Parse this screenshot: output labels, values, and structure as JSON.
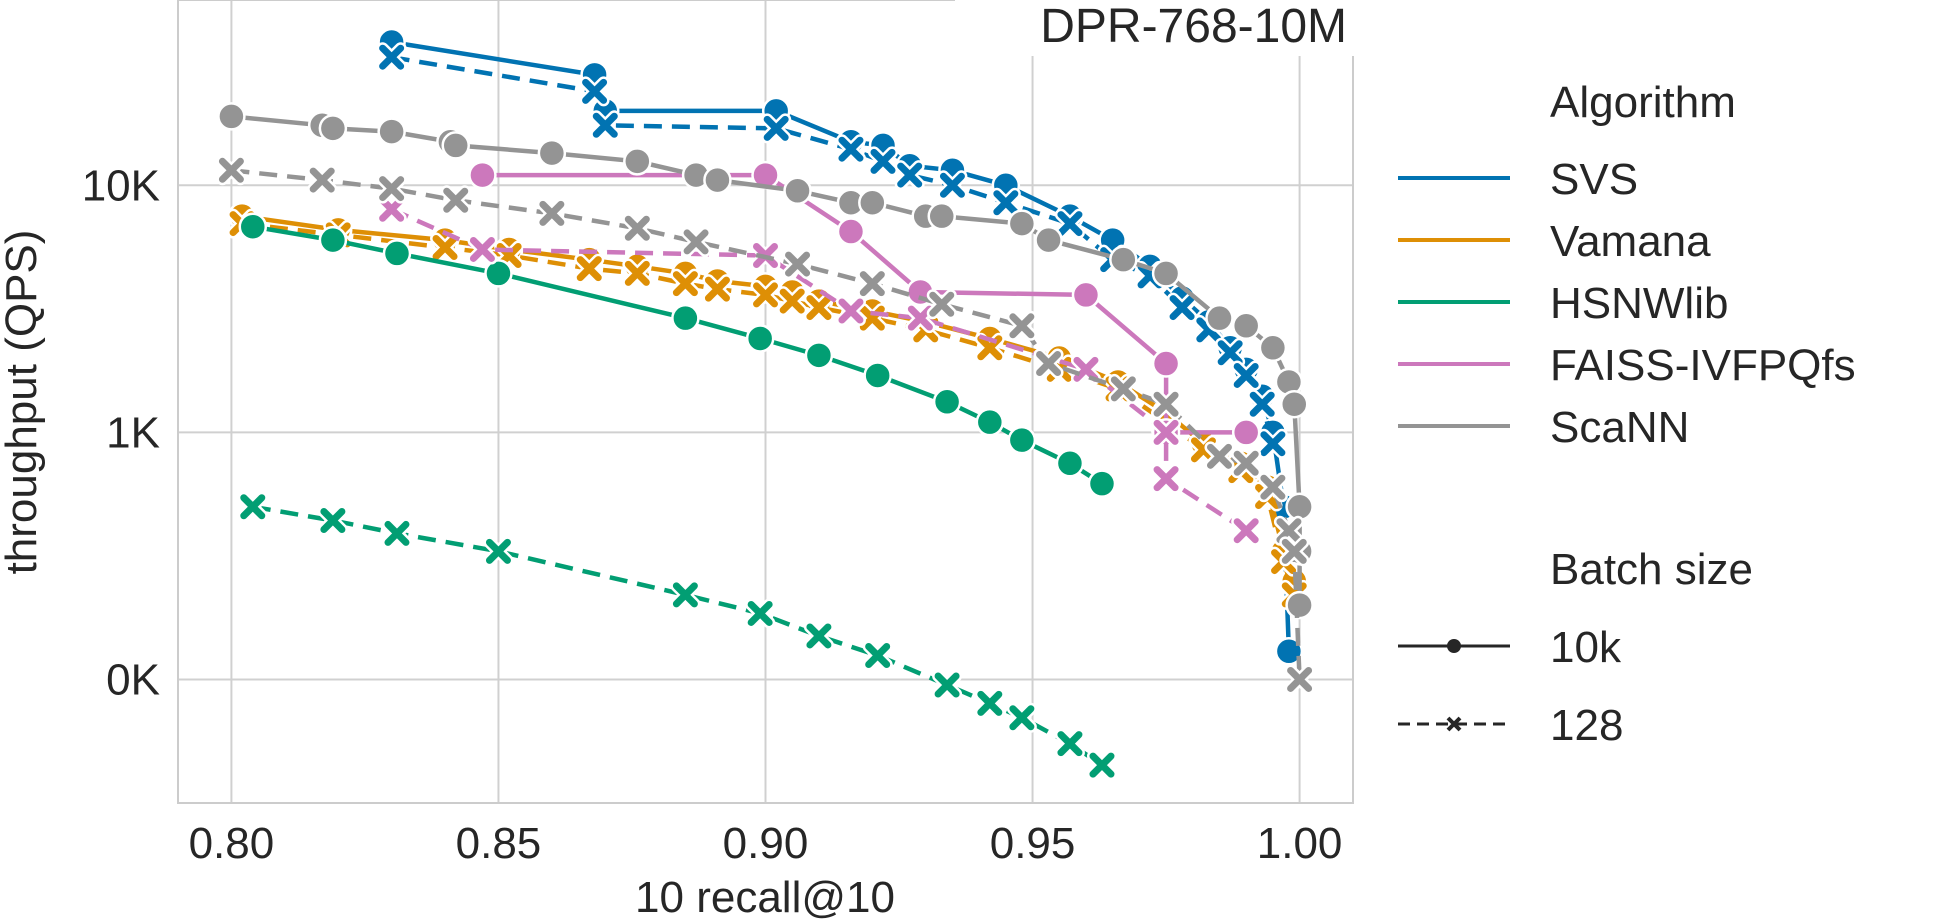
{
  "chart_data": {
    "type": "line",
    "title": "DPR-768-10M",
    "xlabel": "10 recall@10",
    "ylabel": "throughput (QPS)",
    "xlim": [
      0.79,
      1.01
    ],
    "ylim_log10": [
      1.5,
      4.75
    ],
    "x_scale": "linear",
    "y_scale": "log",
    "grid": true,
    "legend_placement": "outside-right",
    "x_ticks": [
      0.8,
      0.85,
      0.9,
      0.95,
      1.0
    ],
    "x_tick_labels": [
      "0.80",
      "0.85",
      "0.90",
      "0.95",
      "1.00"
    ],
    "y_ticks": [
      100,
      1000,
      10000
    ],
    "y_tick_labels": [
      "0K",
      "1K",
      "10K"
    ],
    "legend": {
      "algorithm_heading": "Algorithm",
      "batch_heading": "Batch size",
      "batch_items": [
        {
          "label": "10k",
          "dash": "solid",
          "marker": "circle"
        },
        {
          "label": "128",
          "dash": "dashed",
          "marker": "x"
        }
      ]
    },
    "series": [
      {
        "name": "SVS",
        "batch": "10k",
        "color": "#0173b2",
        "dash": "solid",
        "marker": "circle",
        "x": [
          0.83,
          0.868,
          0.87,
          0.902,
          0.916,
          0.922,
          0.927,
          0.935,
          0.945,
          0.957,
          0.965,
          0.972,
          0.978,
          0.983,
          0.987,
          0.99,
          0.993,
          0.995,
          0.997,
          0.998
        ],
        "y": [
          38000,
          28000,
          20000,
          20000,
          15000,
          14500,
          12000,
          11500,
          10000,
          7500,
          6000,
          4700,
          3500,
          2800,
          2200,
          1800,
          1400,
          1000,
          500,
          130
        ]
      },
      {
        "name": "SVS",
        "batch": "128",
        "color": "#0173b2",
        "dash": "dashed",
        "marker": "x",
        "x": [
          0.83,
          0.868,
          0.87,
          0.902,
          0.916,
          0.922,
          0.927,
          0.935,
          0.945,
          0.957,
          0.965,
          0.972,
          0.978,
          0.983,
          0.987,
          0.99,
          0.993,
          0.995
        ],
        "y": [
          33000,
          24000,
          17500,
          17000,
          14000,
          12500,
          11000,
          10000,
          8500,
          7000,
          5000,
          4300,
          3200,
          2600,
          2100,
          1700,
          1300,
          900
        ]
      },
      {
        "name": "Vamana",
        "batch": "10k",
        "color": "#de8f05",
        "dash": "solid",
        "marker": "circle",
        "x": [
          0.802,
          0.82,
          0.84,
          0.852,
          0.867,
          0.876,
          0.885,
          0.891,
          0.9,
          0.905,
          0.91,
          0.92,
          0.93,
          0.942,
          0.955,
          0.966,
          0.975,
          0.982,
          0.989,
          0.994,
          0.997,
          0.999
        ],
        "y": [
          7500,
          6600,
          6000,
          5500,
          5000,
          4700,
          4400,
          4100,
          3900,
          3700,
          3400,
          3100,
          2800,
          2400,
          2000,
          1600,
          1200,
          900,
          750,
          600,
          330,
          250
        ]
      },
      {
        "name": "Vamana",
        "batch": "128",
        "color": "#de8f05",
        "dash": "dashed",
        "marker": "x",
        "x": [
          0.802,
          0.82,
          0.84,
          0.852,
          0.867,
          0.876,
          0.885,
          0.891,
          0.9,
          0.905,
          0.91,
          0.92,
          0.93,
          0.942,
          0.955,
          0.966,
          0.975,
          0.982,
          0.989,
          0.994,
          0.997,
          0.999
        ],
        "y": [
          7000,
          6300,
          5600,
          5200,
          4600,
          4400,
          4000,
          3800,
          3600,
          3400,
          3200,
          2900,
          2600,
          2200,
          1800,
          1500,
          1100,
          850,
          700,
          550,
          300,
          220
        ]
      },
      {
        "name": "HSNWlib",
        "batch": "10k",
        "color": "#029e73",
        "dash": "solid",
        "marker": "circle",
        "x": [
          0.804,
          0.819,
          0.831,
          0.85,
          0.885,
          0.899,
          0.91,
          0.921,
          0.934,
          0.942,
          0.948,
          0.957,
          0.963
        ],
        "y": [
          6800,
          6000,
          5300,
          4400,
          2900,
          2400,
          2050,
          1700,
          1330,
          1100,
          930,
          750,
          620
        ]
      },
      {
        "name": "HSNWlib",
        "batch": "128",
        "color": "#029e73",
        "dash": "dashed",
        "marker": "x",
        "x": [
          0.804,
          0.819,
          0.831,
          0.85,
          0.885,
          0.899,
          0.91,
          0.921,
          0.934,
          0.942,
          0.948,
          0.957,
          0.963
        ],
        "y": [
          500,
          440,
          390,
          330,
          220,
          185,
          150,
          125,
          95,
          80,
          70,
          55,
          45
        ]
      },
      {
        "name": "FAISS-IVFPQfs",
        "batch": "10k",
        "color": "#cc78bc",
        "dash": "solid",
        "marker": "circle",
        "x": [
          0.847,
          0.9,
          0.916,
          0.929,
          0.96,
          0.975,
          0.975,
          0.99
        ],
        "y": [
          11000,
          11000,
          6500,
          3700,
          3600,
          1900,
          1000,
          1000
        ]
      },
      {
        "name": "FAISS-IVFPQfs",
        "batch": "128",
        "color": "#cc78bc",
        "dash": "dashed",
        "marker": "x",
        "x": [
          0.83,
          0.847,
          0.9,
          0.916,
          0.929,
          0.96,
          0.975,
          0.975,
          0.99
        ],
        "y": [
          8000,
          5500,
          5200,
          3100,
          2900,
          1800,
          1000,
          650,
          400
        ]
      },
      {
        "name": "ScaNN",
        "batch": "10k",
        "color": "#949494",
        "dash": "solid",
        "marker": "circle",
        "x": [
          0.8,
          0.817,
          0.819,
          0.83,
          0.841,
          0.842,
          0.86,
          0.876,
          0.887,
          0.891,
          0.906,
          0.916,
          0.92,
          0.93,
          0.933,
          0.948,
          0.953,
          0.967,
          0.975,
          0.985,
          0.99,
          0.995,
          0.998,
          0.999,
          1.0,
          1.0,
          1.0
        ],
        "y": [
          19000,
          17500,
          17000,
          16500,
          15000,
          14500,
          13500,
          12500,
          11000,
          10500,
          9500,
          8500,
          8500,
          7500,
          7500,
          7000,
          6000,
          5000,
          4400,
          2900,
          2700,
          2200,
          1600,
          1300,
          500,
          330,
          200
        ]
      },
      {
        "name": "ScaNN",
        "batch": "128",
        "color": "#949494",
        "dash": "dashed",
        "marker": "x",
        "x": [
          0.8,
          0.817,
          0.83,
          0.842,
          0.86,
          0.876,
          0.887,
          0.906,
          0.92,
          0.933,
          0.948,
          0.953,
          0.967,
          0.975,
          0.985,
          0.99,
          0.995,
          0.998,
          0.999,
          1.0
        ],
        "y": [
          11500,
          10500,
          9700,
          8700,
          7700,
          6700,
          5900,
          4800,
          4000,
          3300,
          2700,
          1900,
          1500,
          1300,
          800,
          750,
          600,
          400,
          330,
          100
        ]
      }
    ]
  }
}
